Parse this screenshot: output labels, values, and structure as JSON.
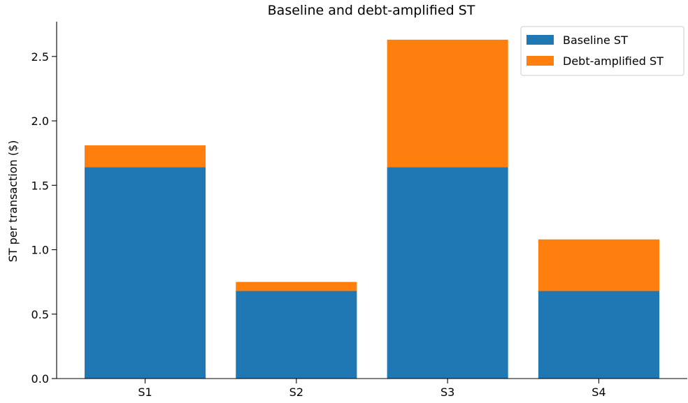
{
  "chart_data": {
    "type": "bar",
    "stacked": true,
    "title": "Baseline and debt-amplified ST",
    "xlabel": "",
    "ylabel": "ST per transaction ($)",
    "categories": [
      "S1",
      "S2",
      "S3",
      "S4"
    ],
    "series": [
      {
        "name": "Baseline ST",
        "color": "#1f77b4",
        "values": [
          1.64,
          0.68,
          1.64,
          0.68
        ]
      },
      {
        "name": "Debt-amplified ST",
        "color": "#ff7f0e",
        "values": [
          0.17,
          0.07,
          0.99,
          0.4
        ]
      }
    ],
    "ylim": [
      0,
      2.77
    ],
    "yticks": [
      "0.0",
      "0.5",
      "1.0",
      "1.5",
      "2.0",
      "2.5"
    ],
    "grid": false,
    "legend_position": "top-right"
  }
}
